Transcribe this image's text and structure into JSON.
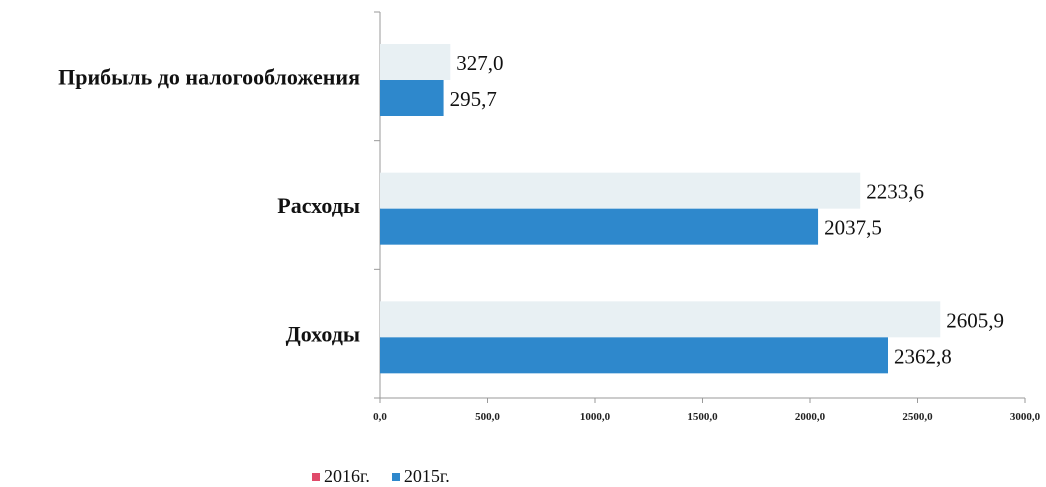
{
  "chart_data": {
    "type": "bar",
    "orientation": "horizontal",
    "categories": [
      "Прибыль до налогообложения",
      "Расходы",
      "Доходы"
    ],
    "series": [
      {
        "name": "2016г.",
        "values": [
          327.0,
          2233.6,
          2605.9
        ],
        "value_labels": [
          "327,0",
          "2233,6",
          "2605,9"
        ],
        "color": "#e8f0f3"
      },
      {
        "name": "2015г.",
        "values": [
          295.7,
          2037.5,
          2362.8
        ],
        "value_labels": [
          "295,7",
          "2037,5",
          "2362,8"
        ],
        "color": "#2e88cc"
      }
    ],
    "xlim": [
      0,
      3000
    ],
    "x_ticks": [
      "0,0",
      "500,0",
      "1000,0",
      "1500,0",
      "2000,0",
      "2500,0",
      "3000,0"
    ],
    "grid": false,
    "legend": {
      "position": "bottom-left",
      "entries": [
        {
          "label": "2016г.",
          "color": "#e04a6a"
        },
        {
          "label": "2015г.",
          "color": "#2e88cc"
        }
      ]
    },
    "title": "",
    "xlabel": "",
    "ylabel": ""
  }
}
